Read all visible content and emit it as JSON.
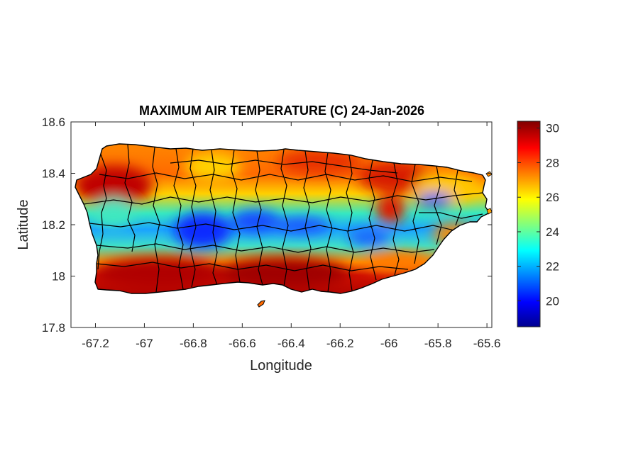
{
  "map": {
    "title": "MAXIMUM AIR TEMPERATURE (C) 24-Jan-2026",
    "xlabel": "Longitude",
    "ylabel": "Latitude",
    "xlim": [
      -67.3,
      -65.58
    ],
    "ylim": [
      17.8,
      18.6
    ],
    "xticks": [
      -67.2,
      -67,
      -66.8,
      -66.6,
      -66.4,
      -66.2,
      -66,
      -65.8,
      -65.6
    ],
    "xtick_labels": [
      "-67.2",
      "-67",
      "-66.8",
      "-66.6",
      "-66.4",
      "-66.2",
      "-66",
      "-65.8",
      "-65.6"
    ],
    "yticks": [
      17.8,
      18,
      18.2,
      18.4,
      18.6
    ],
    "ytick_labels": [
      "17.8",
      "18",
      "18.2",
      "18.4",
      "18.6"
    ],
    "colorbar": {
      "colormap": "jet",
      "range": [
        18.5,
        30.4
      ],
      "ticks": [
        20,
        22,
        24,
        26,
        28,
        30
      ],
      "tick_labels": [
        "20",
        "22",
        "24",
        "26",
        "28",
        "30"
      ]
    },
    "colors": {
      "hot": "#b30000",
      "warm": "#ff6a00",
      "mild": "#ffe600",
      "cool": "#2fe6c8",
      "cold": "#0a3cff",
      "border": "#000000"
    }
  }
}
